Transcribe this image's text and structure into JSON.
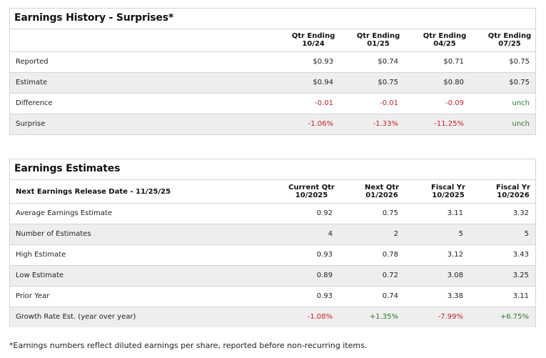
{
  "surprises": {
    "title": "Earnings History - Surprises*",
    "columns": [
      {
        "line1": "Qtr Ending",
        "line2": "10/24"
      },
      {
        "line1": "Qtr Ending",
        "line2": "01/25"
      },
      {
        "line1": "Qtr Ending",
        "line2": "04/25"
      },
      {
        "line1": "Qtr Ending",
        "line2": "07/25"
      }
    ],
    "rows": [
      {
        "label": "Reported",
        "values": [
          "$0.93",
          "$0.74",
          "$0.71",
          "$0.75"
        ],
        "tones": [
          "",
          "",
          "",
          ""
        ]
      },
      {
        "label": "Estimate",
        "values": [
          "$0.94",
          "$0.75",
          "$0.80",
          "$0.75"
        ],
        "tones": [
          "",
          "",
          "",
          ""
        ]
      },
      {
        "label": "Difference",
        "values": [
          "-0.01",
          "-0.01",
          "-0.09",
          "unch"
        ],
        "tones": [
          "neg",
          "neg",
          "neg",
          "pos"
        ]
      },
      {
        "label": "Surprise",
        "values": [
          "-1.06%",
          "-1.33%",
          "-11.25%",
          "unch"
        ],
        "tones": [
          "neg",
          "neg",
          "neg",
          "pos"
        ]
      }
    ]
  },
  "estimates": {
    "title": "Earnings Estimates",
    "release_label": "Next Earnings Release Date - 11/25/25",
    "columns": [
      {
        "line1": "Current Qtr",
        "line2": "10/2025"
      },
      {
        "line1": "Next Qtr",
        "line2": "01/2026"
      },
      {
        "line1": "Fiscal Yr",
        "line2": "10/2025"
      },
      {
        "line1": "Fiscal Yr",
        "line2": "10/2026"
      }
    ],
    "rows": [
      {
        "label": "Average Earnings Estimate",
        "values": [
          "0.92",
          "0.75",
          "3.11",
          "3.32"
        ],
        "tones": [
          "",
          "",
          "",
          ""
        ]
      },
      {
        "label": "Number of Estimates",
        "values": [
          "4",
          "2",
          "5",
          "5"
        ],
        "tones": [
          "",
          "",
          "",
          ""
        ]
      },
      {
        "label": "High Estimate",
        "values": [
          "0.93",
          "0.78",
          "3.12",
          "3.43"
        ],
        "tones": [
          "",
          "",
          "",
          ""
        ]
      },
      {
        "label": "Low Estimate",
        "values": [
          "0.89",
          "0.72",
          "3.08",
          "3.25"
        ],
        "tones": [
          "",
          "",
          "",
          ""
        ]
      },
      {
        "label": "Prior Year",
        "values": [
          "0.93",
          "0.74",
          "3.38",
          "3.11"
        ],
        "tones": [
          "",
          "",
          "",
          ""
        ]
      },
      {
        "label": "Growth Rate Est. (year over year)",
        "values": [
          "-1.08%",
          "+1.35%",
          "-7.99%",
          "+6.75%"
        ],
        "tones": [
          "neg",
          "pos",
          "neg",
          "pos"
        ]
      }
    ]
  },
  "footnote": "*Earnings numbers reflect diluted earnings per share, reported before non-recurring items.",
  "colors": {
    "negative": "#c0262d",
    "positive": "#2c7a2c",
    "alt_row": "#eeeeee",
    "border": "#d4d4d4"
  }
}
